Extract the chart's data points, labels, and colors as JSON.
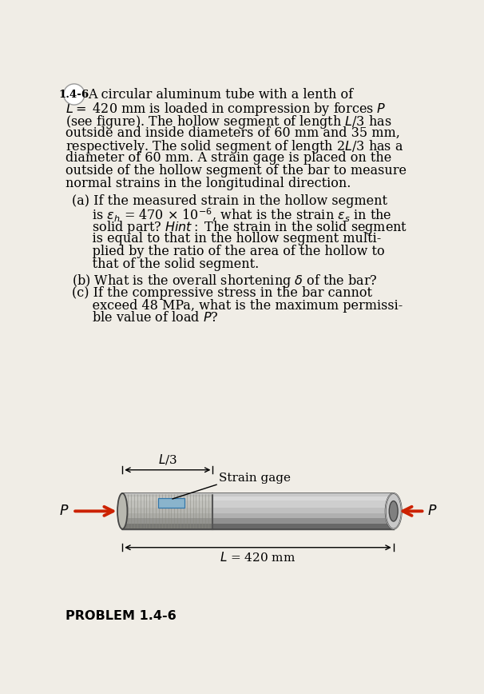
{
  "bg_color": "#f0ede6",
  "title_text": "1.4-6",
  "line1_first": "A circular aluminum tube with a lenth of",
  "line2": "$L=$ 420 mm is loaded in compression by forces $P$",
  "line3": "(see figure). The hollow segment of length $L$/3 has",
  "line4": "outside and inside diameters of 60 mm and 35 mm,",
  "line5": "respectively. The solid segment of length 2$L$/3 has a",
  "line6": "diameter of 60 mm. A strain gage is placed on the",
  "line7": "outside of the hollow segment of the bar to measure",
  "line8": "normal strains in the longitudinal direction.",
  "part_a_lines": [
    "(a) If the measured strain in the hollow segment",
    "     is $\\varepsilon_h$ = 470 $\\times$ 10$^{-6}$, what is the strain $\\varepsilon_s$ in the",
    "     solid part? $\\mathit{Hint:}$ The strain in the solid segment",
    "     is equal to that in the hollow segment multi-",
    "     plied by the ratio of the area of the hollow to",
    "     that of the solid segment."
  ],
  "part_b": "(b) What is the overall shortening $\\delta$ of the bar?",
  "part_c_lines": [
    "(c) If the compressive stress in the bar cannot",
    "     exceed 48 MPa, what is the maximum permissi-",
    "     ble value of load $P$?"
  ],
  "problem_label": "PROBLEM 1.4-6",
  "dim_L3_label": "$L$/3",
  "strain_gage_label": "Strain gage",
  "dim_total_label": "$L$ = 420 mm",
  "P_label": "$P$",
  "gage_color": "#8ab4cc",
  "arrow_color": "#cc2200",
  "tube_base": "#b0b0b0",
  "tube_light": "#d4d4d4",
  "tube_lighter": "#e0e0e0",
  "tube_dark": "#787878",
  "tube_darker": "#606060",
  "tube_edge": "#555555"
}
